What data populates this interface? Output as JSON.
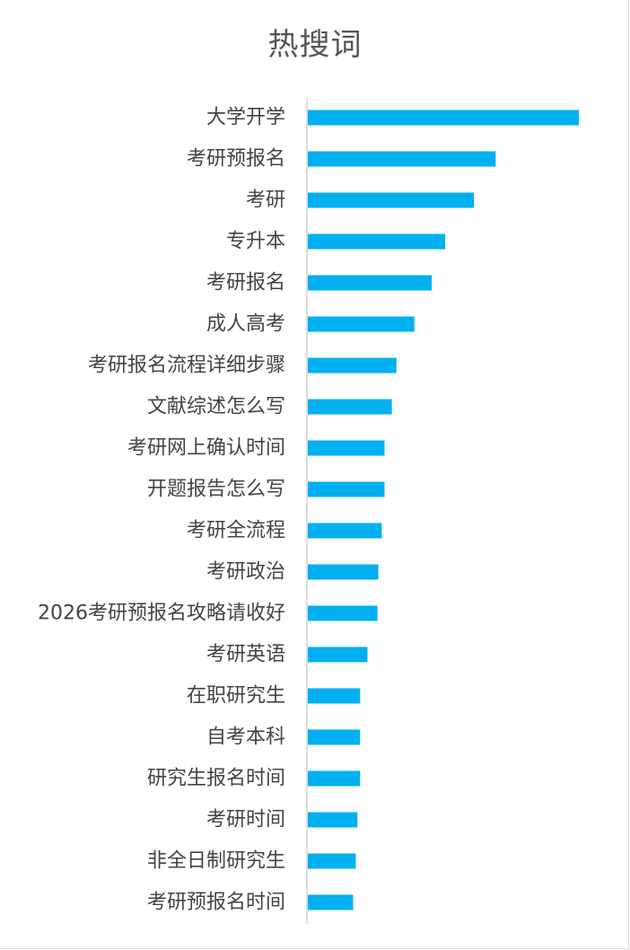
{
  "chart_data": {
    "type": "bar",
    "orientation": "horizontal",
    "title": "热搜词",
    "categories": [
      "大学开学",
      "考研预报名",
      "考研",
      "专升本",
      "考研报名",
      "成人高考",
      "考研报名流程详细步骤",
      "文献综述怎么写",
      "考研网上确认时间",
      "开题报告怎么写",
      "考研全流程",
      "考研政治",
      "2026考研预报名攻略请收好",
      "考研英语",
      "在职研究生",
      "自考本科",
      "研究生报名时间",
      "考研时间",
      "非全日制研究生",
      "考研预报名时间"
    ],
    "values": [
      100,
      69.3,
      61.3,
      50.7,
      45.7,
      39.3,
      32.7,
      31,
      28.3,
      28.3,
      27.3,
      26,
      25.7,
      22,
      19.3,
      19.3,
      19.3,
      18.3,
      17.7,
      16.7
    ],
    "xlim": [
      0,
      100
    ],
    "grid": false,
    "legend": "none",
    "bar_color": "#00b0f0"
  }
}
